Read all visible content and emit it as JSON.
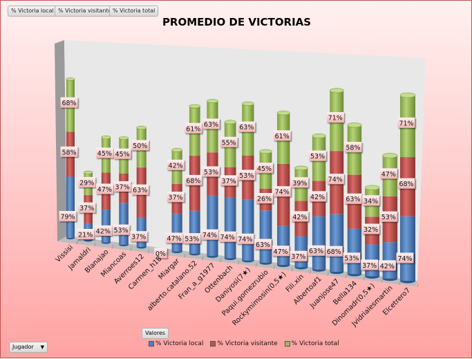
{
  "field_buttons": [
    "% Victoria local",
    "% Victoria visitante",
    "% Victoria total"
  ],
  "axis_field": "Jugador",
  "values_button": "Valores",
  "colors": {
    "local": "#4f81bd",
    "visitante": "#c0504d",
    "total": "#9bbb59"
  },
  "chart_data": {
    "type": "bar",
    "subtype": "3d-stacked-cylinder",
    "title": "PROMEDIO DE VICTORIAS",
    "xlabel": "",
    "ylabel": "",
    "legend_position": "bottom",
    "categories": [
      "Vissisi",
      "Jamaldri",
      "Blanajao",
      "Miancoas",
      "Averroes12",
      "Carmen_h18",
      "Miargar",
      "alberto.catalano.52",
      "Fran_a_g1977",
      "Ottenbach",
      "Daniyosi(7★)",
      "Paqui.gomezrubio",
      "Rockymimosin(0,5★)",
      "Fili.xin",
      "Albertoaf1",
      "Juanjose47",
      "Bella134",
      "Dinomadr(0,5★)",
      "Jvidrialesmartin",
      "Elcetrero7"
    ],
    "series": [
      {
        "name": "% Victoria local",
        "values": [
          79,
          21,
          42,
          53,
          37,
          0,
          47,
          53,
          74,
          74,
          74,
          63,
          47,
          37,
          63,
          68,
          53,
          37,
          42,
          74
        ]
      },
      {
        "name": "% Victoria visitante",
        "values": [
          58,
          37,
          47,
          37,
          63,
          0,
          37,
          68,
          53,
          37,
          53,
          26,
          74,
          42,
          42,
          74,
          63,
          32,
          53,
          68
        ]
      },
      {
        "name": "% Victoria total",
        "values": [
          68,
          29,
          45,
          45,
          50,
          0,
          42,
          61,
          63,
          55,
          63,
          45,
          61,
          39,
          53,
          71,
          58,
          34,
          47,
          71
        ]
      }
    ]
  }
}
